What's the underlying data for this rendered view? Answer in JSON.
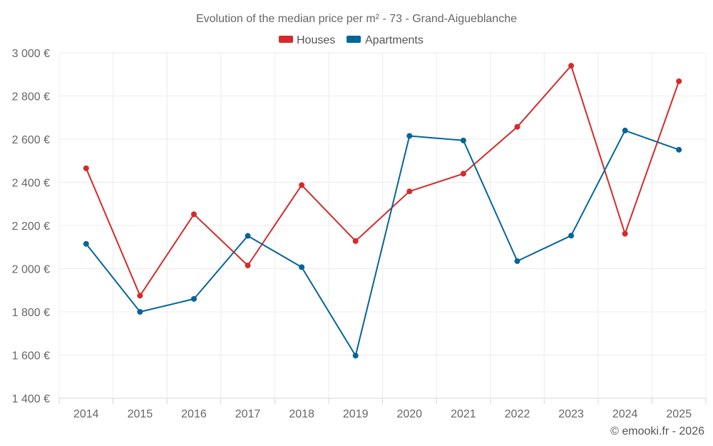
{
  "chart_data": {
    "type": "line",
    "title": "Evolution of the median price per m² - 73 - Grand-Aigueblanche",
    "categories": [
      "2014",
      "2015",
      "2016",
      "2017",
      "2018",
      "2019",
      "2020",
      "2021",
      "2022",
      "2023",
      "2024",
      "2025"
    ],
    "series": [
      {
        "name": "Houses",
        "color": "#d42a2a",
        "values": [
          2465,
          1875,
          2252,
          2015,
          2387,
          2128,
          2358,
          2440,
          2657,
          2940,
          2162,
          2868
        ]
      },
      {
        "name": "Apartments",
        "color": "#04659a",
        "values": [
          2115,
          1800,
          1860,
          2152,
          2007,
          1597,
          2615,
          2594,
          2035,
          2153,
          2640,
          2551
        ]
      }
    ],
    "ylim": [
      1400,
      3000
    ],
    "ytick_labels": [
      "1 400 €",
      "1 600 €",
      "1 800 €",
      "2 000 €",
      "2 200 €",
      "2 400 €",
      "2 600 €",
      "2 800 €",
      "3 000 €"
    ],
    "ytick_values": [
      1400,
      1600,
      1800,
      2000,
      2200,
      2400,
      2600,
      2800,
      3000
    ],
    "xlabel": "",
    "ylabel": "",
    "grid": true,
    "legend_position": "top-center"
  },
  "credit": "© emooki.fr - 2026"
}
